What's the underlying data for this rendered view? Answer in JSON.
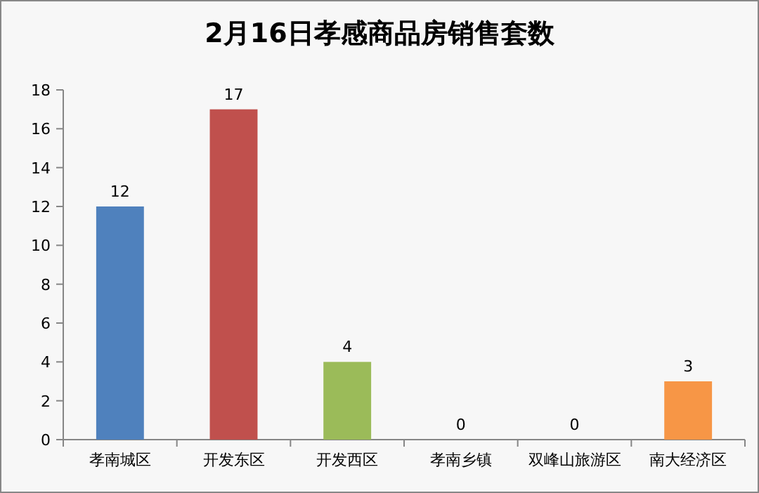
{
  "chart_data": {
    "type": "bar",
    "title": "2月16日孝感商品房销售套数",
    "categories": [
      "孝南城区",
      "开发东区",
      "开发西区",
      "孝南乡镇",
      "双峰山旅游区",
      "南大经济区"
    ],
    "values": [
      12,
      17,
      4,
      0,
      0,
      3
    ],
    "colors": [
      "#4f81bd",
      "#c0504d",
      "#9bbb59",
      "#8064a2",
      "#4bacc6",
      "#f79646"
    ],
    "ylim": [
      0,
      18
    ],
    "yticks": [
      0,
      2,
      4,
      6,
      8,
      10,
      12,
      14,
      16,
      18
    ],
    "data_labels": true
  }
}
